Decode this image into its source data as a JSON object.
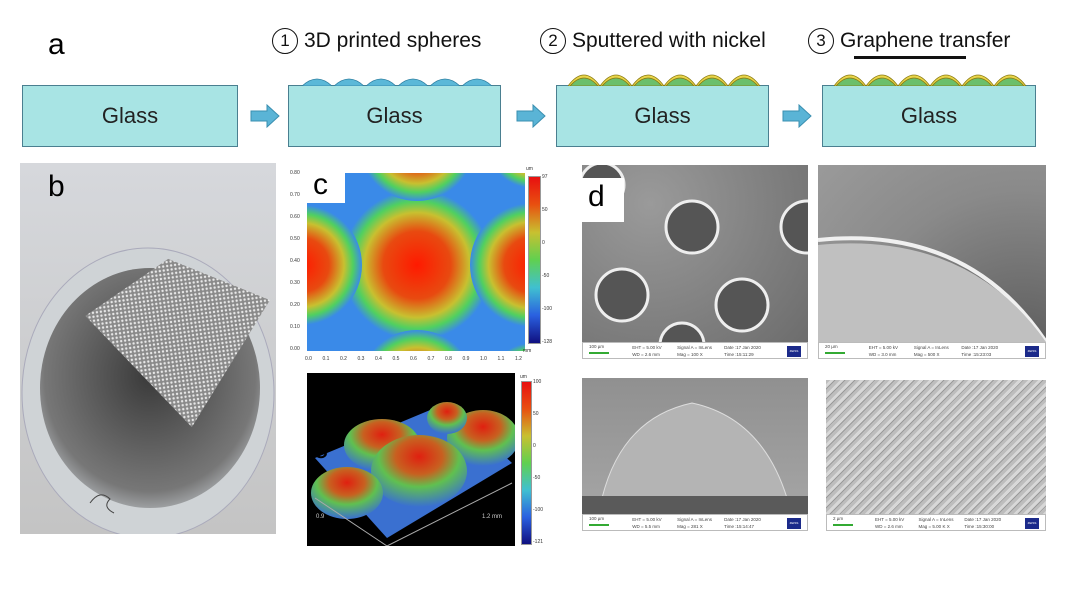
{
  "panel_a": {
    "letter": "a",
    "glass_label": "Glass",
    "steps": [
      {
        "num": "1",
        "label": "3D printed spheres"
      },
      {
        "num": "2",
        "label": "Sputtered with nickel"
      },
      {
        "num": "3",
        "label": "Graphene transfer"
      }
    ],
    "colors": {
      "glass": "#a8e4e4",
      "sphere": "#5bb8d8",
      "nickel": "#e8d44a",
      "graphene": "#111111",
      "arrow": "#5ab4d6"
    }
  },
  "panel_b": {
    "letter": "b"
  },
  "panel_c": {
    "letter": "c",
    "map2d": {
      "y_ticks": [
        "0.80",
        "0.70",
        "0.60",
        "0.50",
        "0.40",
        "0.30",
        "0.20",
        "0.10",
        "0.00"
      ],
      "x_ticks": [
        "0.0",
        "0.1",
        "0.2",
        "0.3",
        "0.4",
        "0.5",
        "0.6",
        "0.7",
        "0.8",
        "0.9",
        "1.0",
        "1.1",
        "1.2"
      ],
      "x_unit": "mm",
      "colorbar_unit": "um",
      "colorbar_ticks": [
        "97",
        "50",
        "0",
        "-50",
        "-100",
        "-128"
      ]
    },
    "map3d": {
      "axis_labels": [
        "0.9",
        "1.2 mm"
      ],
      "colorbar_unit": "um",
      "colorbar_ticks": [
        "100",
        "50",
        "0",
        "-50",
        "-100",
        "-121"
      ]
    }
  },
  "panel_d": {
    "letter": "d",
    "images": [
      {
        "scale": "100 µm",
        "eht": "EHT = 5.00 kV",
        "wd": "WD = 2.6 mm",
        "signal": "Signal A = InLens",
        "mag": "Mag = 100 X",
        "date": "Date :17 Jan 2020",
        "time": "Time :15:11:29",
        "logo": "ZEISS"
      },
      {
        "scale": "20 µm",
        "eht": "EHT = 5.00 kV",
        "wd": "WD = 3.0 mm",
        "signal": "Signal A = InLens",
        "mag": "Mag = 500 X",
        "date": "Date :17 Jan 2020",
        "time": "Time :15:23:03",
        "logo": "ZEISS"
      },
      {
        "scale": "100 µm",
        "eht": "EHT = 5.00 kV",
        "wd": "WD = 5.5 mm",
        "signal": "Signal A = InLens",
        "mag": "Mag = 281 X",
        "date": "Date :17 Jan 2020",
        "time": "Time :15:14:47",
        "logo": "ZEISS"
      },
      {
        "scale": "2 µm",
        "eht": "EHT = 5.00 kV",
        "wd": "WD = 2.6 mm",
        "signal": "Signal A = InLens",
        "mag": "Mag = 5.00 K X",
        "date": "Date :17 Jan 2020",
        "time": "Time :15:30:00",
        "logo": "ZEISS"
      }
    ]
  }
}
